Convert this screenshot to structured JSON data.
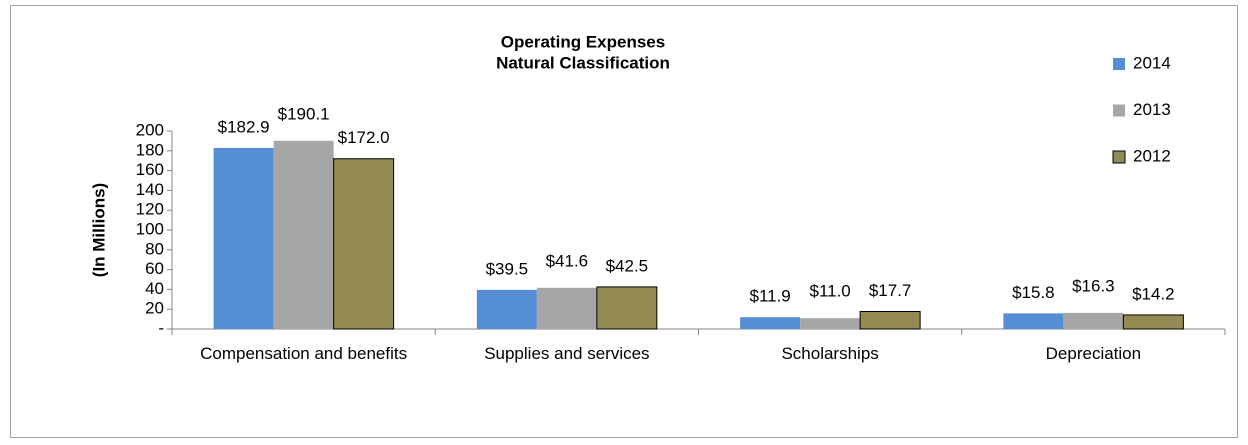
{
  "chart_data": {
    "type": "bar",
    "title": "Operating Expenses",
    "subtitle": "Natural Classification",
    "y_label": "(In Millions)",
    "categories": [
      "Compensation and benefits",
      "Supplies and services",
      "Scholarships",
      "Depreciation"
    ],
    "series": [
      {
        "name": "2014",
        "color": "#558ed5",
        "values": [
          182.9,
          39.5,
          11.9,
          15.8
        ],
        "value_labels": [
          "$182.9",
          "$39.5",
          "$11.9",
          "$15.8"
        ]
      },
      {
        "name": "2013",
        "color": "#a6a6a6",
        "values": [
          190.1,
          41.6,
          11.0,
          16.3
        ],
        "value_labels": [
          "$190.1",
          "$41.6",
          "$11.0",
          "$16.3"
        ]
      },
      {
        "name": "2012",
        "color": "#948a54",
        "values": [
          172.0,
          42.5,
          17.7,
          14.2
        ],
        "value_labels": [
          "$172.0",
          "$42.5",
          "$17.7",
          "$14.2"
        ]
      }
    ],
    "ylim": [
      0,
      200
    ],
    "yticks": [
      {
        "value": 0,
        "label": "-"
      },
      20,
      40,
      60,
      80,
      100,
      120,
      140,
      160,
      180,
      200
    ],
    "legend": "right"
  }
}
